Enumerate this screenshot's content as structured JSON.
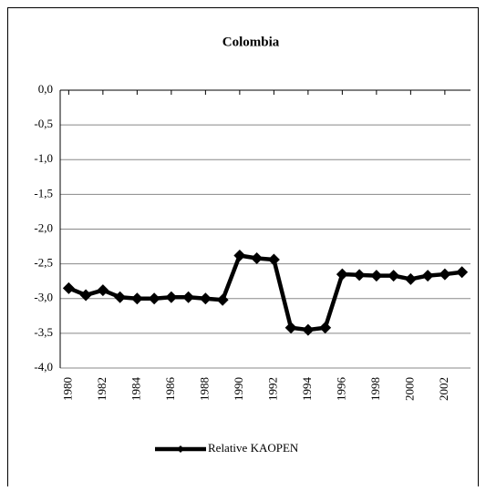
{
  "chart_data": {
    "type": "line",
    "title": "Colombia",
    "x": [
      1980,
      1981,
      1982,
      1983,
      1984,
      1985,
      1986,
      1987,
      1988,
      1989,
      1990,
      1991,
      1992,
      1993,
      1994,
      1995,
      1996,
      1997,
      1998,
      1999,
      2000,
      2001,
      2002,
      2003
    ],
    "xlim": [
      1979.5,
      2003.5
    ],
    "xticks": [
      1980,
      1982,
      1984,
      1986,
      1988,
      1990,
      1992,
      1994,
      1996,
      1998,
      2000,
      2002
    ],
    "series": [
      {
        "name": "Relative KAOPEN",
        "color": "#000000",
        "values": [
          -2.85,
          -2.95,
          -2.88,
          -2.98,
          -3.0,
          -3.0,
          -2.98,
          -2.98,
          -3.0,
          -3.02,
          -2.38,
          -2.42,
          -2.44,
          -3.42,
          -3.45,
          -3.42,
          -2.65,
          -2.66,
          -2.67,
          -2.67,
          -2.72,
          -2.67,
          -2.65,
          -2.62
        ]
      }
    ],
    "ylim": [
      -4,
      0
    ],
    "yticks": [
      {
        "value": 0,
        "label": "0,0"
      },
      {
        "value": -0.5,
        "label": "-0,5"
      },
      {
        "value": -1,
        "label": "-1,0"
      },
      {
        "value": -1.5,
        "label": "-1,5"
      },
      {
        "value": -2,
        "label": "-2,0"
      },
      {
        "value": -2.5,
        "label": "-2,5"
      },
      {
        "value": -3,
        "label": "-3,0"
      },
      {
        "value": -3.5,
        "label": "-3,5"
      },
      {
        "value": -4,
        "label": "-4,0"
      }
    ],
    "grid": true,
    "legend": "bottom"
  }
}
